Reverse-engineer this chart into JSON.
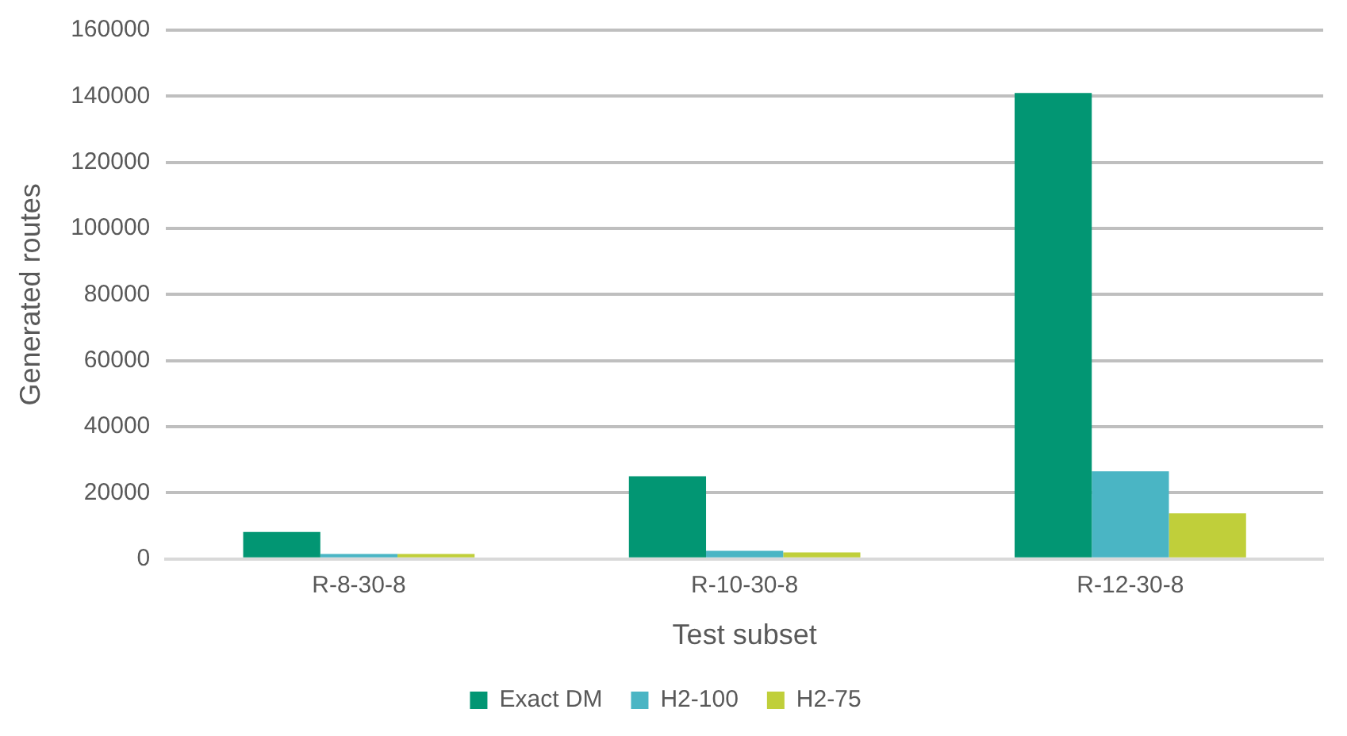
{
  "chart_data": {
    "type": "bar",
    "xlabel": "Test subset",
    "ylabel": "Generated routes",
    "categories": [
      "R-8-30-8",
      "R-10-30-8",
      "R-12-30-8"
    ],
    "series": [
      {
        "name": "Exact DM",
        "color": "#029673",
        "values": [
          8200,
          25000,
          141000
        ]
      },
      {
        "name": "H2-100",
        "color": "#4ab5c4",
        "values": [
          1500,
          2500,
          26500
        ]
      },
      {
        "name": "H2-75",
        "color": "#c0cf3a",
        "values": [
          1500,
          2000,
          13800
        ]
      }
    ],
    "ylim": [
      0,
      160000
    ],
    "yticks": [
      0,
      20000,
      40000,
      60000,
      80000,
      100000,
      120000,
      140000,
      160000
    ],
    "grid": "y",
    "legend": "bottom"
  }
}
